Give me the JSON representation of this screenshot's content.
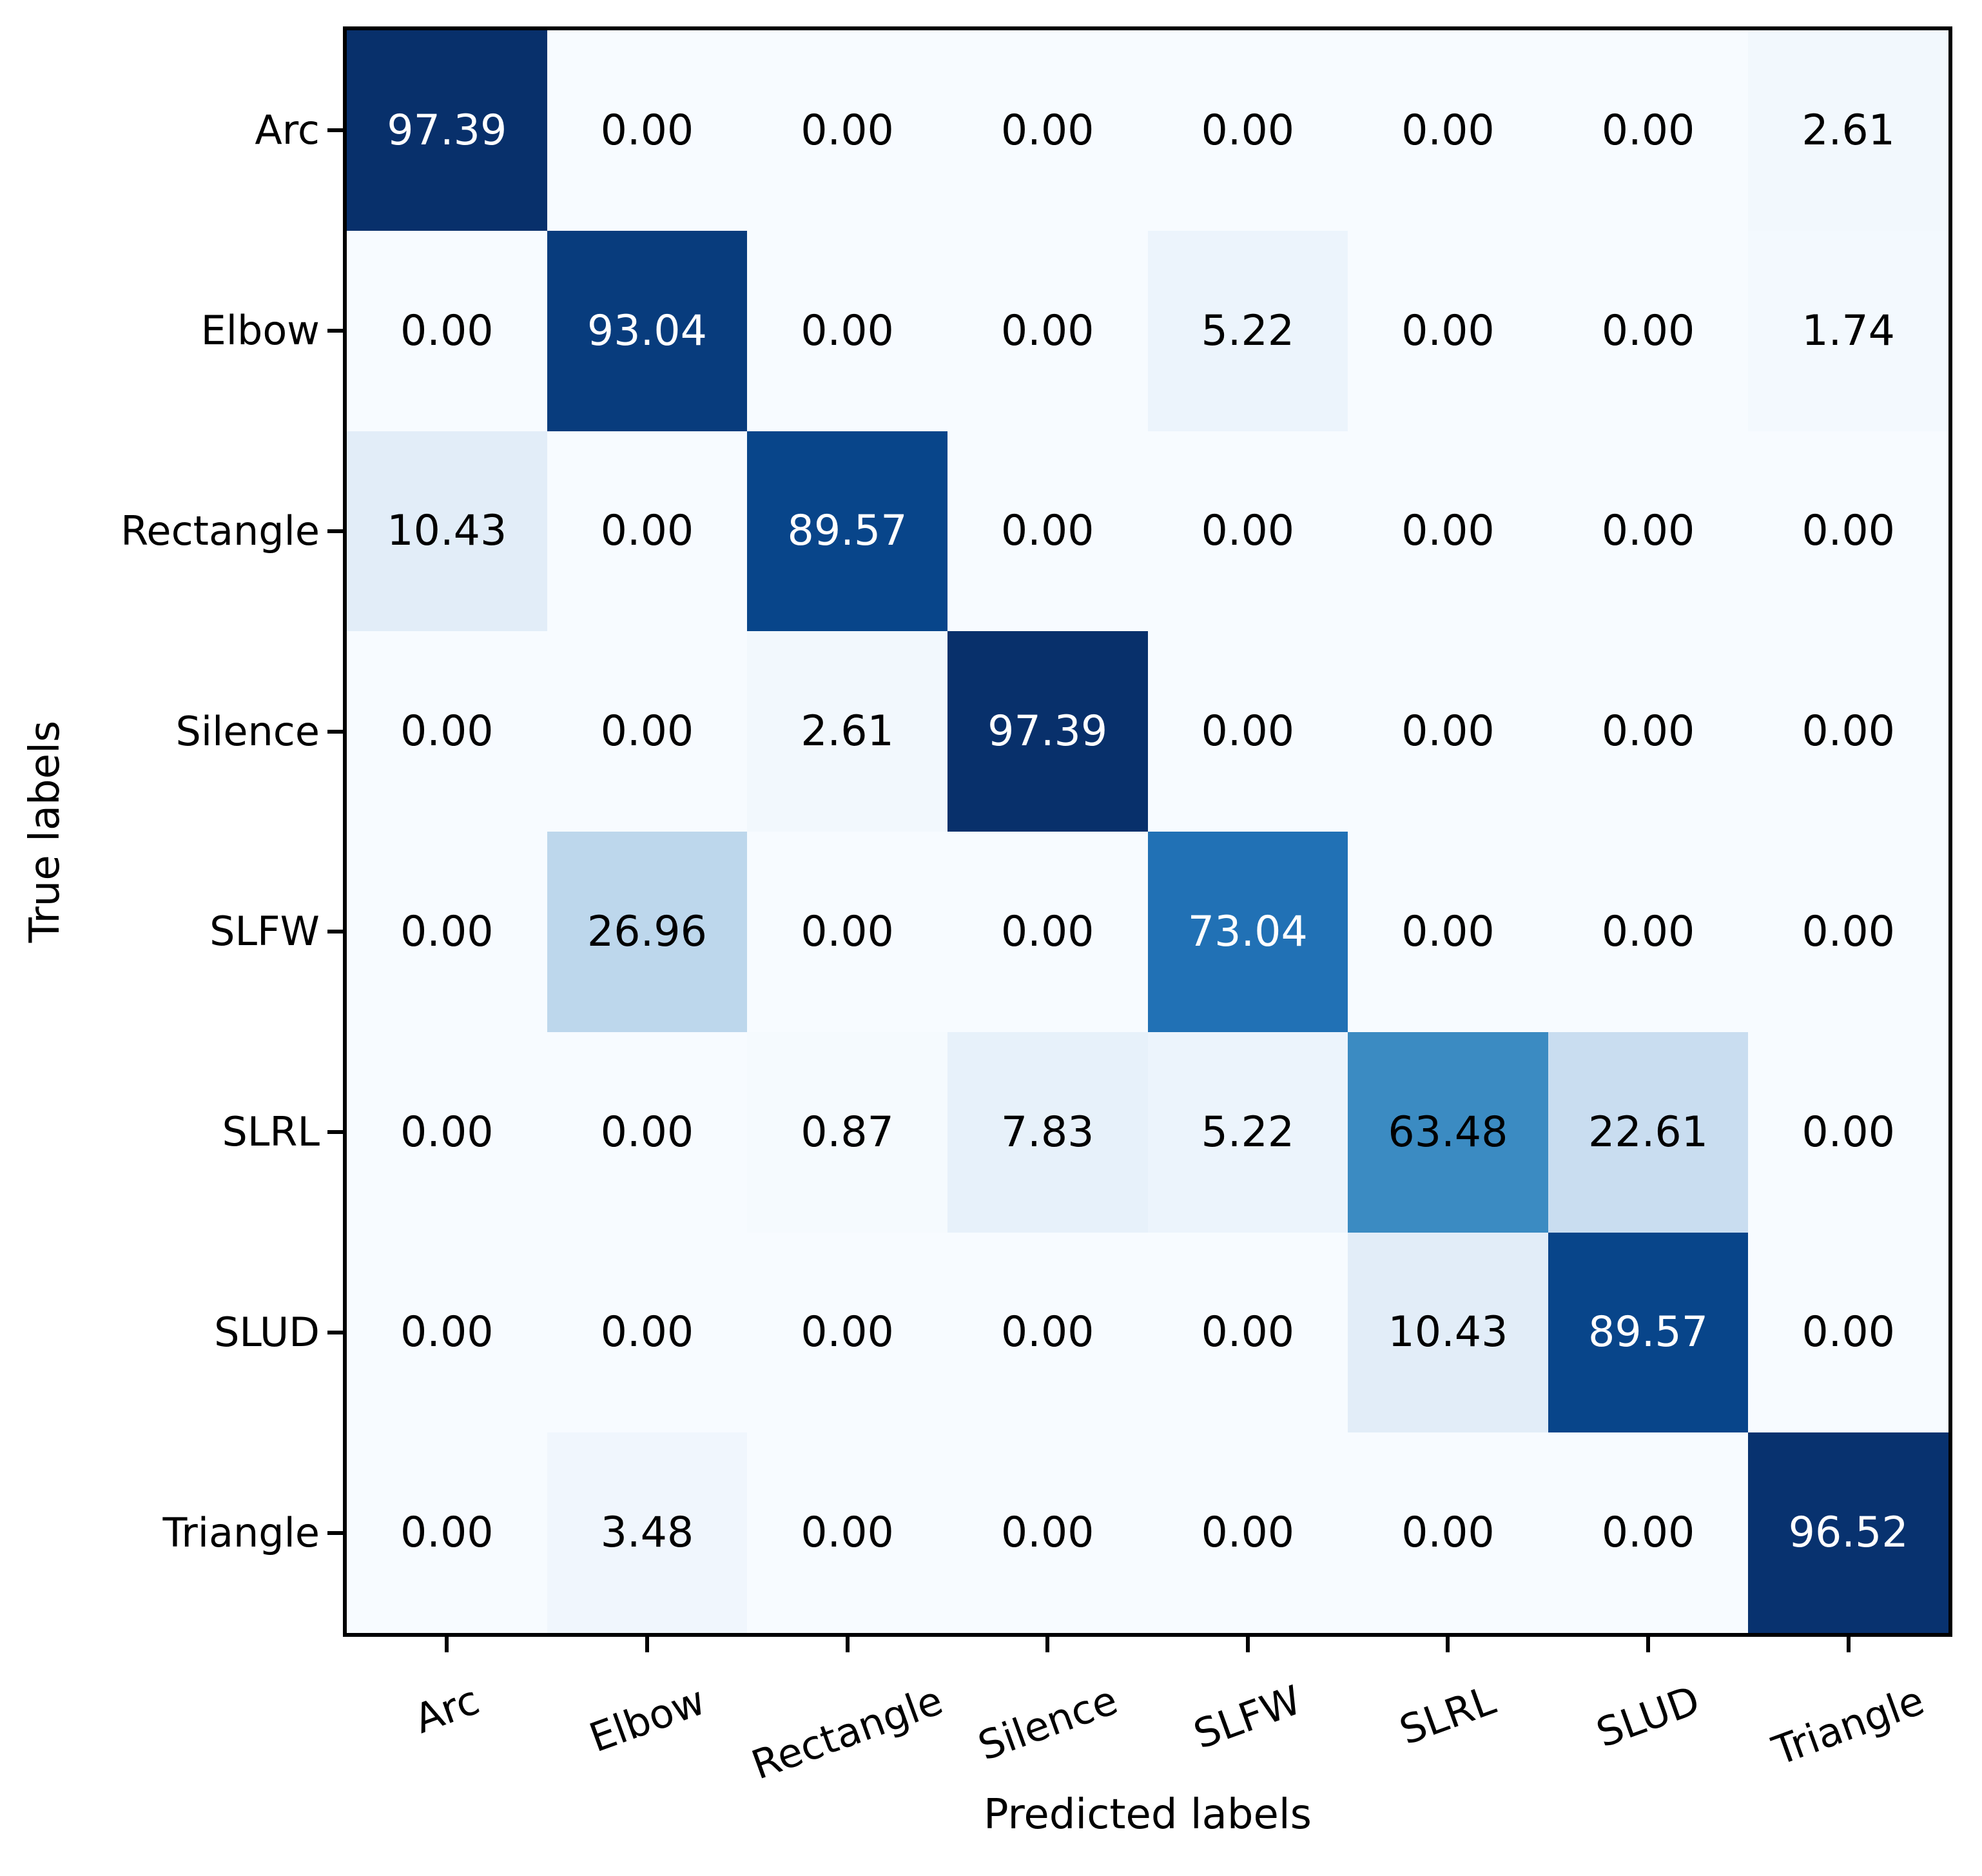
{
  "figure": {
    "background": "#ffffff",
    "spine_color": "#000000",
    "tick_color": "#000000"
  },
  "chart_data": {
    "type": "heatmap",
    "title": "",
    "xlabel": "Predicted labels",
    "ylabel": "True labels",
    "x_categories": [
      "Arc",
      "Elbow",
      "Rectangle",
      "Silence",
      "SLFW",
      "SLRL",
      "SLUD",
      "Triangle"
    ],
    "y_categories": [
      "Arc",
      "Elbow",
      "Rectangle",
      "Silence",
      "SLFW",
      "SLRL",
      "SLUD",
      "Triangle"
    ],
    "values": [
      [
        97.39,
        0.0,
        0.0,
        0.0,
        0.0,
        0.0,
        0.0,
        2.61
      ],
      [
        0.0,
        93.04,
        0.0,
        0.0,
        5.22,
        0.0,
        0.0,
        1.74
      ],
      [
        10.43,
        0.0,
        89.57,
        0.0,
        0.0,
        0.0,
        0.0,
        0.0
      ],
      [
        0.0,
        0.0,
        2.61,
        97.39,
        0.0,
        0.0,
        0.0,
        0.0
      ],
      [
        0.0,
        26.96,
        0.0,
        0.0,
        73.04,
        0.0,
        0.0,
        0.0
      ],
      [
        0.0,
        0.0,
        0.87,
        7.83,
        5.22,
        63.48,
        22.61,
        0.0
      ],
      [
        0.0,
        0.0,
        0.0,
        0.0,
        0.0,
        10.43,
        89.57,
        0.0
      ],
      [
        0.0,
        3.48,
        0.0,
        0.0,
        0.0,
        0.0,
        0.0,
        96.52
      ]
    ],
    "value_decimals": 2,
    "vmin": 0,
    "vmax": 97.39,
    "colormap_name": "Blues",
    "colormap_stops": [
      [
        0.0,
        "#f7fbff"
      ],
      [
        0.125,
        "#deebf7"
      ],
      [
        0.25,
        "#c6dbef"
      ],
      [
        0.375,
        "#9ecae1"
      ],
      [
        0.5,
        "#6baed6"
      ],
      [
        0.625,
        "#4292c6"
      ],
      [
        0.75,
        "#2171b5"
      ],
      [
        0.875,
        "#08519c"
      ],
      [
        1.0,
        "#08306b"
      ]
    ],
    "annotation_text_colors": {
      "light": "#ffffff",
      "dark": "#000000"
    },
    "x_tick_rotation_deg": 20,
    "grid": false,
    "legend": "none"
  }
}
